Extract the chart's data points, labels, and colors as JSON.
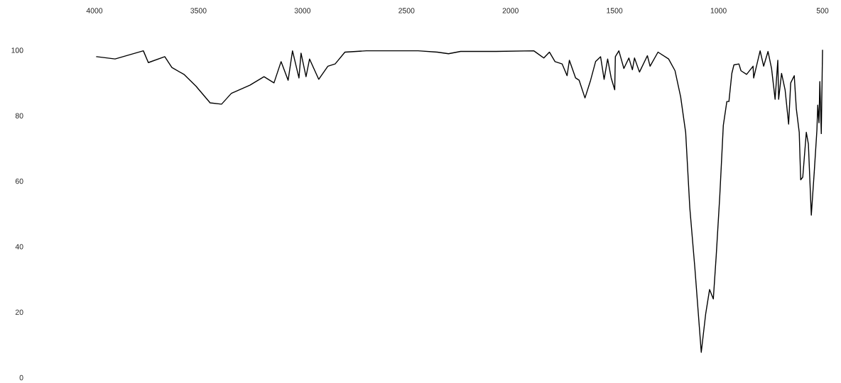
{
  "chart_data": {
    "type": "line",
    "x": [
      3990,
      3901,
      3765,
      3741,
      3662,
      3628,
      3570,
      3512,
      3444,
      3389,
      3342,
      3253,
      3185,
      3137,
      3103,
      3069,
      3048,
      3017,
      3007,
      2983,
      2966,
      2922,
      2878,
      2843,
      2796,
      2693,
      2444,
      2352,
      2298,
      2240,
      2069,
      1888,
      1840,
      1813,
      1786,
      1752,
      1728,
      1717,
      1687,
      1670,
      1642,
      1615,
      1591,
      1567,
      1550,
      1533,
      1516,
      1499,
      1496,
      1479,
      1455,
      1431,
      1414,
      1404,
      1380,
      1342,
      1329,
      1291,
      1240,
      1209,
      1182,
      1158,
      1138,
      1114,
      1083,
      1062,
      1043,
      1025,
      1011,
      994,
      977,
      960,
      950,
      936,
      926,
      902,
      892,
      865,
      834,
      831,
      800,
      783,
      762,
      745,
      728,
      715,
      711,
      697,
      680,
      663,
      653,
      636,
      626,
      612,
      605,
      595,
      578,
      568,
      554,
      540,
      527,
      523,
      517,
      513,
      506,
      500
    ],
    "series": [
      {
        "color": "#000000",
        "values": [
          98.0,
          97.3,
          99.8,
          96.2,
          98.0,
          94.7,
          92.6,
          89.0,
          83.9,
          83.5,
          86.8,
          89.3,
          91.9,
          90.0,
          96.5,
          90.8,
          99.8,
          91.5,
          99.1,
          91.9,
          97.3,
          91.1,
          95.1,
          95.8,
          99.4,
          99.8,
          99.8,
          99.4,
          98.9,
          99.6,
          99.6,
          99.8,
          97.6,
          99.4,
          96.5,
          95.8,
          92.2,
          96.9,
          91.5,
          90.8,
          85.4,
          90.8,
          96.5,
          98.0,
          91.1,
          97.3,
          91.5,
          87.9,
          98.0,
          99.8,
          94.4,
          97.6,
          94.0,
          97.6,
          93.3,
          98.3,
          95.1,
          99.4,
          97.3,
          93.7,
          85.7,
          74.9,
          51.8,
          33.7,
          7.7,
          19.3,
          26.9,
          24.0,
          37.3,
          55.4,
          77.0,
          84.3,
          84.3,
          92.9,
          95.5,
          95.8,
          93.7,
          92.6,
          95.1,
          91.5,
          99.8,
          95.1,
          99.6,
          94.4,
          85.0,
          96.9,
          85.0,
          92.9,
          87.9,
          77.4,
          90.0,
          92.2,
          82.1,
          74.9,
          60.4,
          61.2,
          74.9,
          71.3,
          49.6,
          62.6,
          75.6,
          83.2,
          77.8,
          90.4,
          74.5,
          100
        ]
      }
    ],
    "xlim": [
      4000,
      500
    ],
    "xticks": [
      4000,
      3500,
      3000,
      2500,
      2000,
      1500,
      1000,
      500
    ],
    "ylim": [
      0,
      100
    ],
    "yticks": [
      0,
      20,
      40,
      60,
      80,
      100
    ],
    "grid": false,
    "line_style": "solid",
    "marker": "none"
  }
}
